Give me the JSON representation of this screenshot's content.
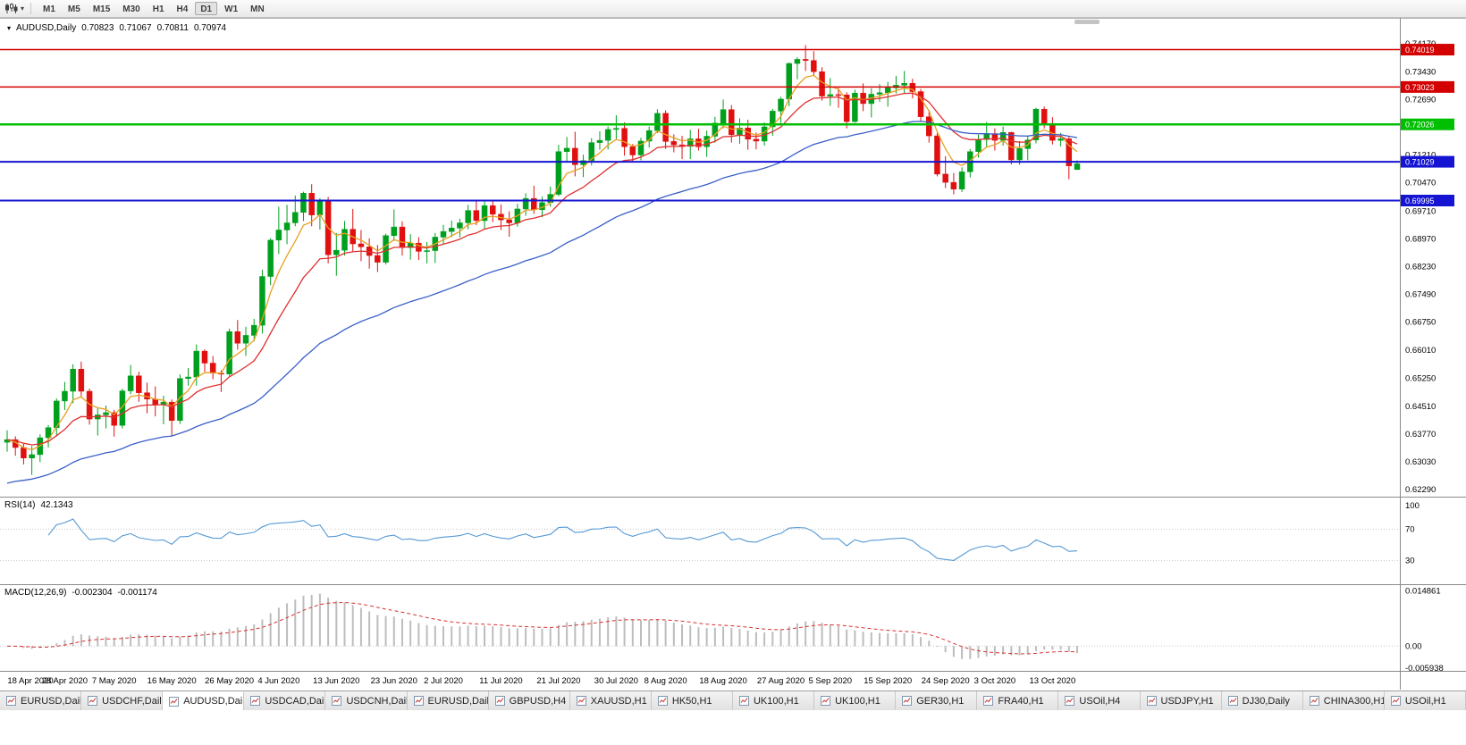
{
  "toolbar": {
    "timeframes": [
      "M1",
      "M5",
      "M15",
      "M30",
      "H1",
      "H4",
      "D1",
      "W1",
      "MN"
    ],
    "active_timeframe": "D1"
  },
  "chart": {
    "symbol_label": "AUDUSD,Daily",
    "open": "0.70823",
    "high": "0.71067",
    "low": "0.70811",
    "close": "0.70974"
  },
  "panels": {
    "rsi_label": "RSI(14)",
    "rsi_value": "42.1343",
    "macd_label": "MACD(12,26,9)",
    "macd_value": "-0.002304",
    "macd_signal": "-0.001174"
  },
  "tabs": [
    {
      "label": "EURUSD,Daily",
      "active": false
    },
    {
      "label": "USDCHF,Daily",
      "active": false
    },
    {
      "label": "AUDUSD,Daily",
      "active": true
    },
    {
      "label": "USDCAD,Daily",
      "active": false
    },
    {
      "label": "USDCNH,Daily",
      "active": false
    },
    {
      "label": "EURUSD,Daily",
      "active": false
    },
    {
      "label": "GBPUSD,H4",
      "active": false
    },
    {
      "label": "XAUUSD,H1",
      "active": false
    },
    {
      "label": "HK50,H1",
      "active": false
    },
    {
      "label": "UK100,H1",
      "active": false
    },
    {
      "label": "UK100,H1",
      "active": false
    },
    {
      "label": "GER30,H1",
      "active": false
    },
    {
      "label": "FRA40,H1",
      "active": false
    },
    {
      "label": "USOil,H4",
      "active": false
    },
    {
      "label": "USDJPY,H1",
      "active": false
    },
    {
      "label": "DJ30,Daily",
      "active": false
    },
    {
      "label": "CHINA300,H1",
      "active": false
    },
    {
      "label": "USOil,H1",
      "active": false
    }
  ],
  "chart_data": {
    "type": "candlestick",
    "symbol": "AUDUSD",
    "timeframe": "Daily",
    "y_range": [
      0.6229,
      0.7458
    ],
    "up_color": "#00A01E",
    "down_color": "#E01010",
    "price_ticks": [
      "0.74170",
      "0.73430",
      "0.72690",
      "0.71950",
      "0.71210",
      "0.70470",
      "0.69710",
      "0.68970",
      "0.68230",
      "0.67490",
      "0.66750",
      "0.66010",
      "0.65250",
      "0.64510",
      "0.63770",
      "0.63030",
      "0.62290"
    ],
    "x_labels": [
      "18 Apr 2020",
      "28 Apr 2020",
      "7 May 2020",
      "16 May 2020",
      "26 May 2020",
      "4 Jun 2020",
      "13 Jun 2020",
      "23 Jun 2020",
      "2 Jul 2020",
      "11 Jul 2020",
      "21 Jul 2020",
      "30 Jul 2020",
      "8 Aug 2020",
      "18 Aug 2020",
      "27 Aug 2020",
      "5 Sep 2020",
      "15 Sep 2020",
      "24 Sep 2020",
      "3 Oct 2020",
      "13 Oct 2020"
    ],
    "x_label_indices": [
      0,
      7,
      13,
      20,
      27,
      33,
      40,
      47,
      53,
      60,
      67,
      74,
      80,
      87,
      94,
      100,
      107,
      114,
      120,
      127
    ],
    "hlines": [
      {
        "price": 0.74019,
        "label": "0.74019",
        "color": "#D40000",
        "width": 1.5
      },
      {
        "price": 0.73023,
        "label": "0.73023",
        "color": "#D40000",
        "width": 1.5
      },
      {
        "price": 0.72026,
        "label": "0.72026",
        "color": "#00BE00",
        "width": 2.5
      },
      {
        "price": 0.71029,
        "label": "0.71029",
        "color": "#1414D2",
        "width": 2
      },
      {
        "price": 0.69995,
        "label": "0.69995",
        "color": "#1414D2",
        "width": 2
      }
    ],
    "moving_averages": [
      {
        "period": 5,
        "color": "#E8A020"
      },
      {
        "period": 13,
        "color": "#E03030"
      },
      {
        "period": 40,
        "color": "#3A5FC8",
        "seed": 0.624
      }
    ],
    "rsi": {
      "period": 14,
      "current": 42.1343,
      "color": "#5599D5",
      "range": [
        0,
        100
      ],
      "levels": [
        70,
        30
      ],
      "ticks": [
        {
          "label": "100",
          "value": 100
        },
        {
          "label": "70",
          "value": 70
        },
        {
          "label": "30",
          "value": 30
        }
      ]
    },
    "macd": {
      "fast": 12,
      "slow": 26,
      "signal": 9,
      "current": -0.002304,
      "signal_current": -0.001174,
      "histogram_color": "#BDBDBD",
      "signal_color": "#D83030",
      "range": [
        -0.0062,
        0.0155
      ],
      "ticks": [
        {
          "label": "0.014861",
          "value": 0.014861
        },
        {
          "label": "0.00",
          "value": 0
        },
        {
          "label": "-0.005938",
          "value": -0.005938
        }
      ]
    },
    "ohlc": [
      [
        0.6355,
        0.6387,
        0.633,
        0.6362
      ],
      [
        0.6362,
        0.6371,
        0.6319,
        0.6341
      ],
      [
        0.6341,
        0.6351,
        0.6296,
        0.6313
      ],
      [
        0.6313,
        0.6345,
        0.6268,
        0.6322
      ],
      [
        0.6322,
        0.6376,
        0.6302,
        0.6367
      ],
      [
        0.6367,
        0.6401,
        0.6341,
        0.6394
      ],
      [
        0.6394,
        0.6472,
        0.6372,
        0.6465
      ],
      [
        0.6465,
        0.6516,
        0.6441,
        0.6491
      ],
      [
        0.6491,
        0.6563,
        0.6459,
        0.655
      ],
      [
        0.655,
        0.657,
        0.6478,
        0.6491
      ],
      [
        0.6491,
        0.6498,
        0.6402,
        0.6417
      ],
      [
        0.6417,
        0.6448,
        0.6373,
        0.6428
      ],
      [
        0.6428,
        0.6453,
        0.6392,
        0.6434
      ],
      [
        0.6434,
        0.6442,
        0.637,
        0.64
      ],
      [
        0.64,
        0.6498,
        0.6392,
        0.6492
      ],
      [
        0.6492,
        0.6561,
        0.6483,
        0.6532
      ],
      [
        0.6532,
        0.6543,
        0.6463,
        0.6487
      ],
      [
        0.6487,
        0.6514,
        0.6432,
        0.647
      ],
      [
        0.647,
        0.6504,
        0.6424,
        0.6455
      ],
      [
        0.6455,
        0.6479,
        0.6403,
        0.6462
      ],
      [
        0.6462,
        0.6469,
        0.6372,
        0.6413
      ],
      [
        0.6413,
        0.6536,
        0.6404,
        0.6525
      ],
      [
        0.6525,
        0.6553,
        0.6506,
        0.6529
      ],
      [
        0.6529,
        0.6616,
        0.6506,
        0.6598
      ],
      [
        0.6598,
        0.6603,
        0.6543,
        0.6566
      ],
      [
        0.6566,
        0.6585,
        0.6523,
        0.6539
      ],
      [
        0.6539,
        0.6547,
        0.6489,
        0.6537
      ],
      [
        0.6537,
        0.6658,
        0.6532,
        0.665
      ],
      [
        0.665,
        0.6681,
        0.6602,
        0.6619
      ],
      [
        0.6619,
        0.6663,
        0.6585,
        0.664
      ],
      [
        0.664,
        0.6684,
        0.6624,
        0.6667
      ],
      [
        0.6667,
        0.6815,
        0.6645,
        0.6797
      ],
      [
        0.6797,
        0.6899,
        0.6774,
        0.6894
      ],
      [
        0.6894,
        0.6983,
        0.6857,
        0.6921
      ],
      [
        0.6921,
        0.6988,
        0.6883,
        0.694
      ],
      [
        0.694,
        0.7013,
        0.6931,
        0.6968
      ],
      [
        0.6968,
        0.7023,
        0.6945,
        0.7019
      ],
      [
        0.7019,
        0.7043,
        0.6931,
        0.6961
      ],
      [
        0.6961,
        0.7006,
        0.6922,
        0.7001
      ],
      [
        0.7001,
        0.7009,
        0.6832,
        0.6855
      ],
      [
        0.6855,
        0.6913,
        0.6799,
        0.6867
      ],
      [
        0.6867,
        0.6945,
        0.6853,
        0.6923
      ],
      [
        0.6923,
        0.6977,
        0.6864,
        0.6884
      ],
      [
        0.6884,
        0.6921,
        0.6838,
        0.6876
      ],
      [
        0.6876,
        0.6899,
        0.6818,
        0.6853
      ],
      [
        0.6853,
        0.6881,
        0.6809,
        0.6835
      ],
      [
        0.6835,
        0.6911,
        0.6829,
        0.6906
      ],
      [
        0.6906,
        0.6976,
        0.6892,
        0.6929
      ],
      [
        0.6929,
        0.6944,
        0.6853,
        0.6874
      ],
      [
        0.6874,
        0.691,
        0.6842,
        0.6886
      ],
      [
        0.6886,
        0.6902,
        0.6841,
        0.6864
      ],
      [
        0.6864,
        0.6889,
        0.6832,
        0.6866
      ],
      [
        0.6866,
        0.6913,
        0.6833,
        0.6902
      ],
      [
        0.6902,
        0.6935,
        0.6884,
        0.6917
      ],
      [
        0.6917,
        0.6946,
        0.6902,
        0.6926
      ],
      [
        0.6926,
        0.6951,
        0.6901,
        0.694
      ],
      [
        0.694,
        0.6988,
        0.6923,
        0.6973
      ],
      [
        0.6973,
        0.6998,
        0.6934,
        0.6946
      ],
      [
        0.6946,
        0.6999,
        0.6922,
        0.6986
      ],
      [
        0.6986,
        0.7001,
        0.6942,
        0.6963
      ],
      [
        0.6963,
        0.6989,
        0.6921,
        0.6948
      ],
      [
        0.6948,
        0.6971,
        0.6903,
        0.694
      ],
      [
        0.694,
        0.6991,
        0.693,
        0.6977
      ],
      [
        0.6977,
        0.7019,
        0.6959,
        0.7005
      ],
      [
        0.7005,
        0.7039,
        0.6964,
        0.6975
      ],
      [
        0.6975,
        0.701,
        0.6955,
        0.6994
      ],
      [
        0.6994,
        0.7037,
        0.6983,
        0.7016
      ],
      [
        0.7016,
        0.7148,
        0.7011,
        0.713
      ],
      [
        0.713,
        0.7169,
        0.7102,
        0.7139
      ],
      [
        0.7139,
        0.7183,
        0.7064,
        0.7095
      ],
      [
        0.7095,
        0.7122,
        0.7062,
        0.7106
      ],
      [
        0.7106,
        0.7166,
        0.7093,
        0.7154
      ],
      [
        0.7154,
        0.7184,
        0.7135,
        0.716
      ],
      [
        0.716,
        0.7197,
        0.7136,
        0.7189
      ],
      [
        0.7189,
        0.7227,
        0.7163,
        0.7192
      ],
      [
        0.7192,
        0.7208,
        0.7119,
        0.7143
      ],
      [
        0.7143,
        0.715,
        0.7102,
        0.7121
      ],
      [
        0.7121,
        0.7167,
        0.7107,
        0.7158
      ],
      [
        0.7158,
        0.7197,
        0.7141,
        0.7186
      ],
      [
        0.7186,
        0.7243,
        0.7179,
        0.7232
      ],
      [
        0.7232,
        0.724,
        0.7137,
        0.7157
      ],
      [
        0.7157,
        0.7176,
        0.7128,
        0.7148
      ],
      [
        0.7148,
        0.7172,
        0.711,
        0.7144
      ],
      [
        0.7144,
        0.7188,
        0.711,
        0.7164
      ],
      [
        0.7164,
        0.7191,
        0.7133,
        0.7143
      ],
      [
        0.7143,
        0.7186,
        0.7116,
        0.7171
      ],
      [
        0.7171,
        0.7223,
        0.7154,
        0.7206
      ],
      [
        0.7206,
        0.7269,
        0.7192,
        0.7242
      ],
      [
        0.7242,
        0.7254,
        0.7154,
        0.7175
      ],
      [
        0.7175,
        0.7219,
        0.7151,
        0.7193
      ],
      [
        0.7193,
        0.7215,
        0.7135,
        0.7163
      ],
      [
        0.7163,
        0.7181,
        0.7136,
        0.7158
      ],
      [
        0.7158,
        0.7208,
        0.7146,
        0.7196
      ],
      [
        0.7196,
        0.7244,
        0.7172,
        0.7238
      ],
      [
        0.7238,
        0.7276,
        0.7206,
        0.727
      ],
      [
        0.727,
        0.7368,
        0.7251,
        0.7365
      ],
      [
        0.7365,
        0.7382,
        0.7323,
        0.7376
      ],
      [
        0.7376,
        0.7414,
        0.7345,
        0.7373
      ],
      [
        0.7373,
        0.7398,
        0.7334,
        0.7343
      ],
      [
        0.7343,
        0.7355,
        0.7266,
        0.7278
      ],
      [
        0.7278,
        0.7326,
        0.7252,
        0.7282
      ],
      [
        0.7282,
        0.73,
        0.7247,
        0.7281
      ],
      [
        0.7281,
        0.7288,
        0.7192,
        0.721
      ],
      [
        0.721,
        0.7295,
        0.7207,
        0.7286
      ],
      [
        0.7286,
        0.7312,
        0.7238,
        0.7258
      ],
      [
        0.7258,
        0.7299,
        0.7221,
        0.7283
      ],
      [
        0.7283,
        0.731,
        0.7263,
        0.7287
      ],
      [
        0.7287,
        0.7316,
        0.725,
        0.73
      ],
      [
        0.73,
        0.7332,
        0.7285,
        0.7307
      ],
      [
        0.7307,
        0.7345,
        0.7284,
        0.7312
      ],
      [
        0.7312,
        0.7324,
        0.7272,
        0.729
      ],
      [
        0.729,
        0.7297,
        0.721,
        0.7223
      ],
      [
        0.7223,
        0.7241,
        0.7154,
        0.7172
      ],
      [
        0.7172,
        0.718,
        0.7064,
        0.707
      ],
      [
        0.707,
        0.7118,
        0.7033,
        0.7048
      ],
      [
        0.7048,
        0.7073,
        0.7016,
        0.703
      ],
      [
        0.703,
        0.7088,
        0.7022,
        0.7076
      ],
      [
        0.7076,
        0.7137,
        0.7061,
        0.713
      ],
      [
        0.713,
        0.7175,
        0.7114,
        0.7162
      ],
      [
        0.7162,
        0.7209,
        0.7142,
        0.7178
      ],
      [
        0.7178,
        0.7192,
        0.7133,
        0.716
      ],
      [
        0.716,
        0.7197,
        0.7146,
        0.7181
      ],
      [
        0.7181,
        0.7183,
        0.7096,
        0.7108
      ],
      [
        0.7108,
        0.7158,
        0.7095,
        0.7138
      ],
      [
        0.7138,
        0.7171,
        0.7107,
        0.7161
      ],
      [
        0.7161,
        0.7247,
        0.7152,
        0.7243
      ],
      [
        0.7243,
        0.725,
        0.7192,
        0.7205
      ],
      [
        0.7205,
        0.7222,
        0.7149,
        0.716
      ],
      [
        0.716,
        0.718,
        0.7144,
        0.7164
      ],
      [
        0.7164,
        0.717,
        0.7056,
        0.7092
      ],
      [
        0.70823,
        0.71067,
        0.70811,
        0.70974
      ]
    ]
  }
}
